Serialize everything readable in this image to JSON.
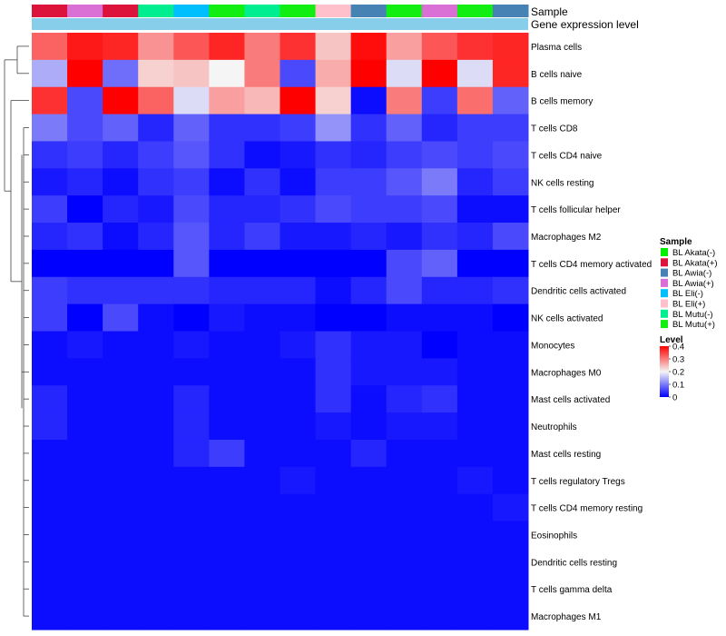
{
  "chart_data": {
    "type": "heatmap",
    "title": "",
    "xlabel": "",
    "ylabel": "",
    "annotation_tracks": [
      {
        "name": "Sample"
      },
      {
        "name": "Gene expression level"
      }
    ],
    "column_samples": [
      "BL Akata(+)",
      "BL Awia(+)",
      "BL Akata(+)",
      "BL Mutu(-)",
      "BL Eli(-)",
      "BL Mutu(+)",
      "BL Mutu(-)",
      "BL Mutu(+)",
      "BL Eli(+)",
      "BL Awia(-)",
      "BL Mutu(+)",
      "BL Awia(+)",
      "BL Mutu(+)",
      "BL Awia(-)"
    ],
    "rows": [
      "Plasma cells",
      "B cells naive",
      "B cells memory",
      "T cells CD8",
      "T cells CD4 naive",
      "NK cells resting",
      "T cells follicular helper",
      "Macrophages M2",
      "T cells CD4 memory activated",
      "Dendritic cells activated",
      "NK cells activated",
      "Monocytes",
      "Macrophages M0",
      "Mast cells activated",
      "Neutrophils",
      "Mast cells resting",
      "T cells regulatory  Tregs",
      "T cells CD4 memory resting",
      "Eosinophils",
      "Dendritic cells resting",
      "T cells gamma delta",
      "Macrophages M1"
    ],
    "values": [
      [
        0.32,
        0.38,
        0.37,
        0.28,
        0.33,
        0.37,
        0.3,
        0.36,
        0.24,
        0.39,
        0.27,
        0.33,
        0.36,
        0.37
      ],
      [
        0.14,
        0.4,
        0.09,
        0.23,
        0.24,
        0.2,
        0.3,
        0.06,
        0.26,
        0.4,
        0.18,
        0.4,
        0.18,
        0.37
      ],
      [
        0.36,
        0.06,
        0.4,
        0.32,
        0.18,
        0.27,
        0.25,
        0.4,
        0.23,
        0.01,
        0.3,
        0.05,
        0.31,
        0.08
      ],
      [
        0.1,
        0.06,
        0.08,
        0.03,
        0.08,
        0.04,
        0.04,
        0.05,
        0.12,
        0.04,
        0.08,
        0.03,
        0.05,
        0.05
      ],
      [
        0.04,
        0.05,
        0.03,
        0.05,
        0.07,
        0.04,
        0.01,
        0.02,
        0.04,
        0.03,
        0.05,
        0.06,
        0.05,
        0.06
      ],
      [
        0.02,
        0.03,
        0.01,
        0.04,
        0.05,
        0.01,
        0.04,
        0.01,
        0.05,
        0.05,
        0.07,
        0.1,
        0.03,
        0.05
      ],
      [
        0.05,
        0.0,
        0.03,
        0.02,
        0.06,
        0.03,
        0.03,
        0.04,
        0.06,
        0.05,
        0.05,
        0.06,
        0.01,
        0.01
      ],
      [
        0.03,
        0.04,
        0.01,
        0.03,
        0.07,
        0.03,
        0.05,
        0.02,
        0.02,
        0.03,
        0.02,
        0.04,
        0.03,
        0.06
      ],
      [
        0.0,
        0.0,
        0.0,
        0.0,
        0.07,
        0.0,
        0.0,
        0.0,
        0.0,
        0.0,
        0.06,
        0.08,
        0.0,
        0.0
      ],
      [
        0.05,
        0.04,
        0.04,
        0.04,
        0.04,
        0.03,
        0.03,
        0.03,
        0.01,
        0.03,
        0.06,
        0.03,
        0.03,
        0.04
      ],
      [
        0.05,
        0.0,
        0.06,
        0.01,
        0.0,
        0.02,
        0.01,
        0.01,
        0.0,
        0.0,
        0.01,
        0.01,
        0.01,
        0.0
      ],
      [
        0.01,
        0.02,
        0.01,
        0.01,
        0.02,
        0.01,
        0.01,
        0.02,
        0.04,
        0.02,
        0.02,
        0.0,
        0.01,
        0.01
      ],
      [
        0.01,
        0.01,
        0.01,
        0.01,
        0.01,
        0.01,
        0.01,
        0.01,
        0.04,
        0.02,
        0.02,
        0.02,
        0.01,
        0.01
      ],
      [
        0.03,
        0.01,
        0.01,
        0.01,
        0.03,
        0.01,
        0.01,
        0.01,
        0.04,
        0.01,
        0.03,
        0.04,
        0.01,
        0.01
      ],
      [
        0.03,
        0.01,
        0.01,
        0.01,
        0.03,
        0.01,
        0.01,
        0.01,
        0.02,
        0.01,
        0.02,
        0.02,
        0.01,
        0.01
      ],
      [
        0.01,
        0.01,
        0.01,
        0.01,
        0.03,
        0.05,
        0.01,
        0.01,
        0.01,
        0.03,
        0.01,
        0.01,
        0.01,
        0.01
      ],
      [
        0.01,
        0.01,
        0.01,
        0.01,
        0.01,
        0.01,
        0.01,
        0.02,
        0.01,
        0.01,
        0.01,
        0.01,
        0.02,
        0.01
      ],
      [
        0.01,
        0.01,
        0.01,
        0.01,
        0.01,
        0.01,
        0.01,
        0.01,
        0.01,
        0.01,
        0.01,
        0.01,
        0.01,
        0.02
      ],
      [
        0.01,
        0.01,
        0.01,
        0.01,
        0.01,
        0.01,
        0.01,
        0.01,
        0.01,
        0.01,
        0.01,
        0.01,
        0.01,
        0.01
      ],
      [
        0.01,
        0.01,
        0.01,
        0.01,
        0.01,
        0.01,
        0.01,
        0.01,
        0.01,
        0.01,
        0.01,
        0.01,
        0.01,
        0.01
      ],
      [
        0.01,
        0.01,
        0.01,
        0.01,
        0.01,
        0.01,
        0.01,
        0.01,
        0.01,
        0.01,
        0.01,
        0.01,
        0.01,
        0.01
      ],
      [
        0.01,
        0.01,
        0.01,
        0.01,
        0.01,
        0.01,
        0.01,
        0.01,
        0.01,
        0.01,
        0.01,
        0.01,
        0.01,
        0.01
      ]
    ],
    "color_scale": {
      "min": 0,
      "mid": 0.2,
      "max": 0.4,
      "low_color": "#0000ff",
      "mid_color": "#f5f5f5",
      "high_color": "#ff0000"
    },
    "legends": {
      "sample": {
        "title": "Sample",
        "items": [
          {
            "label": "BL Akata(-)",
            "color": "#00ee00"
          },
          {
            "label": "BL Akata(+)",
            "color": "#dc143c"
          },
          {
            "label": "BL Awia(-)",
            "color": "#4682b4"
          },
          {
            "label": "BL Awia(+)",
            "color": "#da70d6"
          },
          {
            "label": "BL Eli(-)",
            "color": "#00bfff"
          },
          {
            "label": "BL Eli(+)",
            "color": "#ffc0cb"
          },
          {
            "label": "BL Mutu(-)",
            "color": "#00ee90"
          },
          {
            "label": "BL Mutu(+)",
            "color": "#12ee12"
          }
        ]
      },
      "level": {
        "title": "Level",
        "ticks": [
          "0.4",
          "0.3",
          "0.2",
          "0.1",
          "0"
        ],
        "tick_values": [
          0.4,
          0.3,
          0.2,
          0.1,
          0
        ]
      }
    },
    "gene_expression_color": "#87ceeb",
    "row_dendrogram": true
  }
}
